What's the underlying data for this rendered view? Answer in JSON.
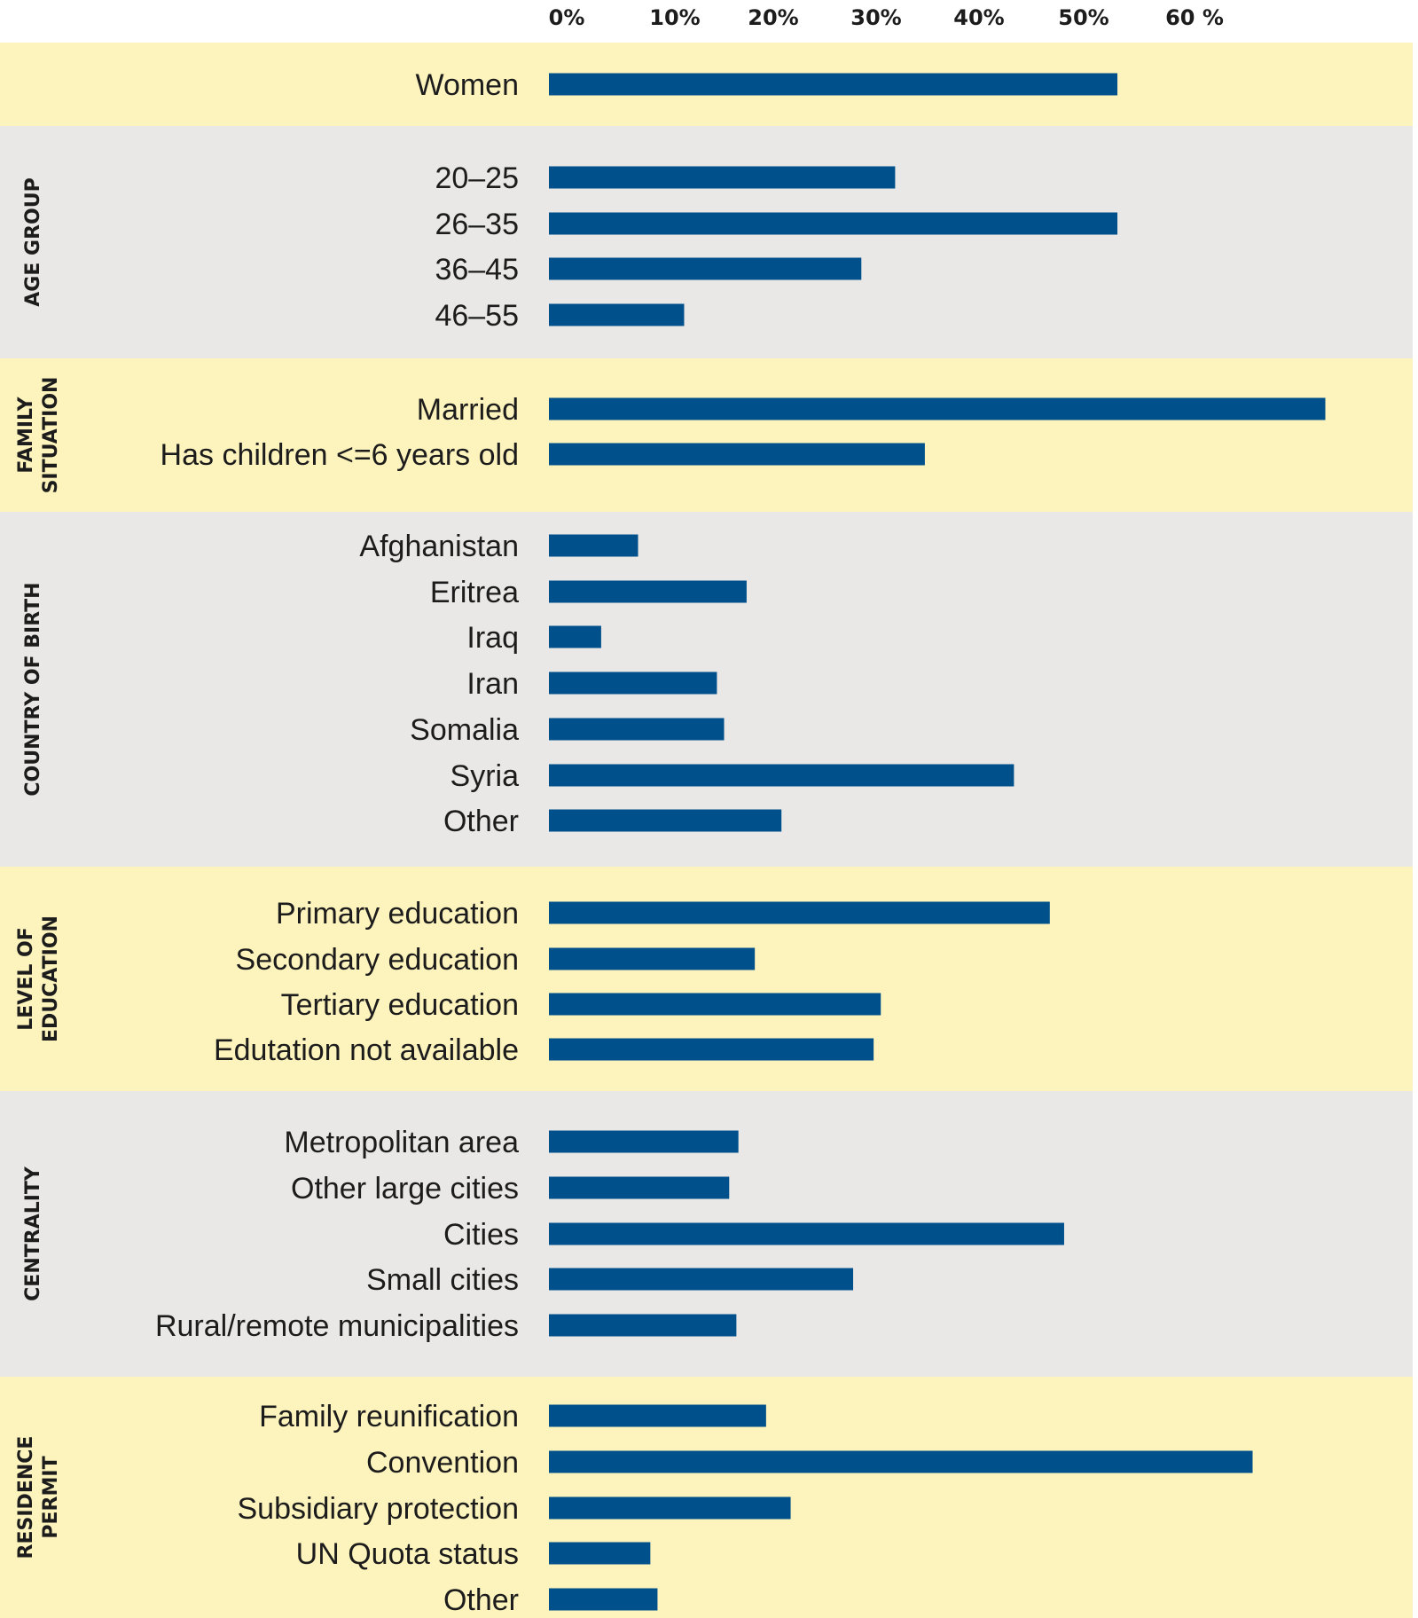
{
  "chart_data": {
    "type": "bar",
    "orientation": "horizontal",
    "title": "",
    "xlabel": "",
    "ylabel": "",
    "x_ticks": [
      "0%",
      "10%",
      "20%",
      "30%",
      "40%",
      "50%",
      "60 %"
    ],
    "xlim": [
      0,
      75
    ],
    "grid": false,
    "legend": "none",
    "bar_color": "#00508c",
    "band_colors": [
      "#fdf3bd",
      "#e9e8e6"
    ],
    "groups": [
      {
        "label": [],
        "band": 0,
        "items": [
          {
            "category": "Women",
            "value": 55.5
          }
        ]
      },
      {
        "label": [
          "AGE GROUP"
        ],
        "band": 1,
        "items": [
          {
            "category": "20–25",
            "value": 33.8
          },
          {
            "category": "26–35",
            "value": 55.5
          },
          {
            "category": "36–45",
            "value": 30.5
          },
          {
            "category": "46–55",
            "value": 13.2
          }
        ]
      },
      {
        "label": [
          "FAMILY",
          "SITUATION"
        ],
        "band": 0,
        "items": [
          {
            "category": "Married",
            "value": 75.8
          },
          {
            "category": "Has children <=6 years old",
            "value": 36.7
          }
        ]
      },
      {
        "label": [
          "COUNTRY OF BIRTH"
        ],
        "band": 1,
        "items": [
          {
            "category": "Afghanistan",
            "value": 8.7
          },
          {
            "category": "Eritrea",
            "value": 19.3
          },
          {
            "category": "Iraq",
            "value": 5.1
          },
          {
            "category": "Iran",
            "value": 16.4
          },
          {
            "category": "Somalia",
            "value": 17.1
          },
          {
            "category": "Syria",
            "value": 45.4
          },
          {
            "category": "Other",
            "value": 22.7
          }
        ]
      },
      {
        "label": [
          "LEVEL OF",
          "EDUCATION"
        ],
        "band": 0,
        "items": [
          {
            "category": "Primary education",
            "value": 48.9
          },
          {
            "category": "Secondary education",
            "value": 20.1
          },
          {
            "category": "Tertiary education",
            "value": 32.4
          },
          {
            "category": "Edutation not available",
            "value": 31.7
          }
        ]
      },
      {
        "label": [
          "CENTRALITY"
        ],
        "band": 1,
        "items": [
          {
            "category": "Metropolitan area",
            "value": 18.5
          },
          {
            "category": "Other large cities",
            "value": 17.6
          },
          {
            "category": "Cities",
            "value": 50.3
          },
          {
            "category": "Small cities",
            "value": 29.7
          },
          {
            "category": "Rural/remote municipalities",
            "value": 18.3
          }
        ]
      },
      {
        "label": [
          "RESIDENCE",
          "PERMIT"
        ],
        "band": 0,
        "items": [
          {
            "category": "Family reunification",
            "value": 21.2
          },
          {
            "category": "Convention",
            "value": 68.7
          },
          {
            "category": "Subsidiary protection",
            "value": 23.6
          },
          {
            "category": "UN Quota status",
            "value": 9.9
          },
          {
            "category": "Other",
            "value": 10.6
          }
        ]
      }
    ]
  }
}
